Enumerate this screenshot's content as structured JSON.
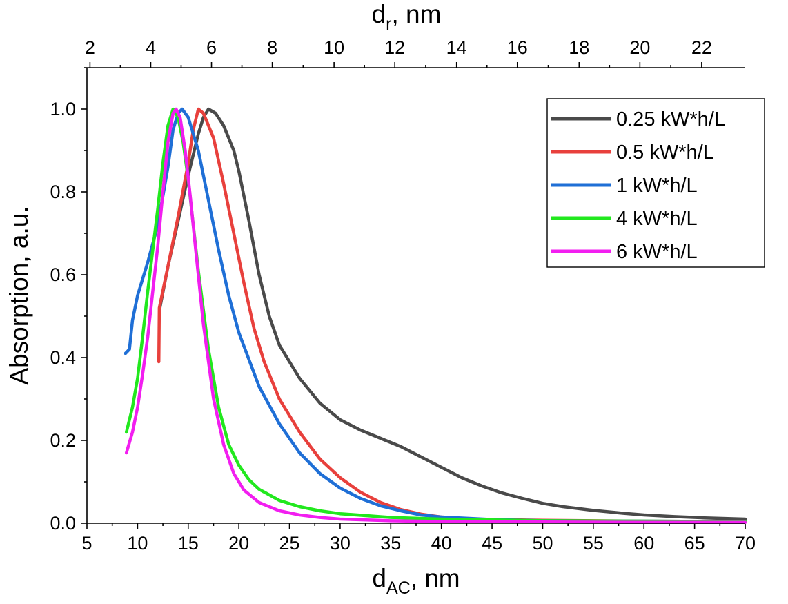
{
  "chart_data": {
    "type": "line",
    "xlabel": {
      "main": "d",
      "sub": "AC",
      "rest": ", nm"
    },
    "x2label": {
      "main": "d",
      "sub": "r",
      "rest": ", nm"
    },
    "ylabel": "Absorption, a.u.",
    "xlim": [
      5,
      70
    ],
    "ylim": [
      0,
      1.1
    ],
    "x_ticks": [
      "5",
      "10",
      "15",
      "20",
      "25",
      "30",
      "35",
      "40",
      "45",
      "50",
      "55",
      "60",
      "65",
      "70"
    ],
    "x_tick_values": [
      5,
      10,
      15,
      20,
      25,
      30,
      35,
      40,
      45,
      50,
      55,
      60,
      65,
      70
    ],
    "y_ticks": [
      "0.0",
      "0.2",
      "0.4",
      "0.6",
      "0.8",
      "1.0"
    ],
    "y_tick_values": [
      0,
      0.2,
      0.4,
      0.6,
      0.8,
      1.0
    ],
    "x2_ticks": [
      "2",
      "4",
      "6",
      "8",
      "10",
      "12",
      "14",
      "16",
      "18",
      "20",
      "22"
    ],
    "x2_tick_values_in_x_units": [
      5.3,
      11.3,
      17.3,
      23.3,
      29.4,
      35.4,
      41.5,
      47.5,
      53.6,
      59.6,
      65.7
    ],
    "legend_position": "top-right",
    "series": [
      {
        "name": "0.25 kW*h/L",
        "color": "#4a4a4a",
        "points": [
          [
            12.2,
            0.52
          ],
          [
            13,
            0.62
          ],
          [
            14,
            0.73
          ],
          [
            15,
            0.84
          ],
          [
            16,
            0.94
          ],
          [
            16.5,
            0.98
          ],
          [
            17,
            1.0
          ],
          [
            17.7,
            0.99
          ],
          [
            18.5,
            0.96
          ],
          [
            19.5,
            0.9
          ],
          [
            20,
            0.85
          ],
          [
            21,
            0.73
          ],
          [
            22,
            0.6
          ],
          [
            23,
            0.5
          ],
          [
            24,
            0.43
          ],
          [
            26,
            0.35
          ],
          [
            28,
            0.29
          ],
          [
            30,
            0.25
          ],
          [
            32,
            0.225
          ],
          [
            34,
            0.205
          ],
          [
            36,
            0.185
          ],
          [
            38,
            0.16
          ],
          [
            40,
            0.135
          ],
          [
            42,
            0.11
          ],
          [
            44,
            0.09
          ],
          [
            46,
            0.073
          ],
          [
            48,
            0.06
          ],
          [
            50,
            0.048
          ],
          [
            52,
            0.04
          ],
          [
            55,
            0.031
          ],
          [
            58,
            0.024
          ],
          [
            60,
            0.02
          ],
          [
            63,
            0.016
          ],
          [
            66,
            0.013
          ],
          [
            70,
            0.01
          ]
        ]
      },
      {
        "name": "0.5 kW*h/L",
        "color": "#e8403c",
        "points": [
          [
            12.1,
            0.39
          ],
          [
            12.15,
            0.52
          ],
          [
            13,
            0.62
          ],
          [
            14,
            0.74
          ],
          [
            15,
            0.87
          ],
          [
            15.5,
            0.95
          ],
          [
            16,
            1.0
          ],
          [
            16.5,
            0.99
          ],
          [
            17.5,
            0.93
          ],
          [
            18.5,
            0.82
          ],
          [
            19.5,
            0.7
          ],
          [
            20.5,
            0.58
          ],
          [
            21.5,
            0.47
          ],
          [
            22.5,
            0.39
          ],
          [
            24,
            0.3
          ],
          [
            26,
            0.22
          ],
          [
            28,
            0.155
          ],
          [
            30,
            0.11
          ],
          [
            32,
            0.075
          ],
          [
            34,
            0.05
          ],
          [
            36,
            0.033
          ],
          [
            38,
            0.022
          ],
          [
            40,
            0.015
          ],
          [
            43,
            0.01
          ],
          [
            50,
            0.007
          ],
          [
            60,
            0.005
          ],
          [
            70,
            0.004
          ]
        ]
      },
      {
        "name": "1 kW*h/L",
        "color": "#1f6fd6",
        "points": [
          [
            8.8,
            0.41
          ],
          [
            9.2,
            0.42
          ],
          [
            9.5,
            0.49
          ],
          [
            10,
            0.55
          ],
          [
            11,
            0.63
          ],
          [
            12,
            0.72
          ],
          [
            13,
            0.86
          ],
          [
            13.5,
            0.95
          ],
          [
            14,
            0.99
          ],
          [
            14.4,
            1.0
          ],
          [
            15,
            0.98
          ],
          [
            16,
            0.9
          ],
          [
            17,
            0.78
          ],
          [
            18,
            0.66
          ],
          [
            19,
            0.55
          ],
          [
            20,
            0.46
          ],
          [
            22,
            0.33
          ],
          [
            24,
            0.24
          ],
          [
            26,
            0.17
          ],
          [
            28,
            0.12
          ],
          [
            30,
            0.085
          ],
          [
            32,
            0.06
          ],
          [
            34,
            0.042
          ],
          [
            36,
            0.03
          ],
          [
            38,
            0.02
          ],
          [
            40,
            0.015
          ],
          [
            45,
            0.009
          ],
          [
            50,
            0.006
          ],
          [
            60,
            0.005
          ],
          [
            70,
            0.004
          ]
        ]
      },
      {
        "name": "4 kW*h/L",
        "color": "#22e81e",
        "points": [
          [
            8.9,
            0.22
          ],
          [
            9.5,
            0.28
          ],
          [
            10,
            0.35
          ],
          [
            10.5,
            0.45
          ],
          [
            11,
            0.56
          ],
          [
            11.5,
            0.66
          ],
          [
            12,
            0.76
          ],
          [
            12.5,
            0.87
          ],
          [
            13,
            0.96
          ],
          [
            13.5,
            1.0
          ],
          [
            14,
            0.98
          ],
          [
            14.5,
            0.92
          ],
          [
            15,
            0.83
          ],
          [
            15.5,
            0.72
          ],
          [
            16,
            0.61
          ],
          [
            17,
            0.42
          ],
          [
            18,
            0.28
          ],
          [
            19,
            0.19
          ],
          [
            20,
            0.14
          ],
          [
            21,
            0.105
          ],
          [
            22,
            0.082
          ],
          [
            24,
            0.055
          ],
          [
            26,
            0.04
          ],
          [
            28,
            0.03
          ],
          [
            30,
            0.023
          ],
          [
            35,
            0.014
          ],
          [
            40,
            0.01
          ],
          [
            45,
            0.008
          ],
          [
            50,
            0.006
          ],
          [
            60,
            0.005
          ],
          [
            70,
            0.004
          ]
        ]
      },
      {
        "name": "6 kW*h/L",
        "color": "#f21ef0",
        "points": [
          [
            8.9,
            0.17
          ],
          [
            9.5,
            0.22
          ],
          [
            10,
            0.28
          ],
          [
            10.5,
            0.36
          ],
          [
            11,
            0.45
          ],
          [
            11.5,
            0.56
          ],
          [
            12,
            0.67
          ],
          [
            12.5,
            0.8
          ],
          [
            13,
            0.92
          ],
          [
            13.5,
            0.99
          ],
          [
            13.8,
            1.0
          ],
          [
            14.2,
            0.98
          ],
          [
            14.7,
            0.9
          ],
          [
            15.2,
            0.79
          ],
          [
            15.7,
            0.67
          ],
          [
            16.5,
            0.48
          ],
          [
            17.5,
            0.3
          ],
          [
            18.5,
            0.19
          ],
          [
            19.5,
            0.12
          ],
          [
            20.5,
            0.08
          ],
          [
            22,
            0.05
          ],
          [
            24,
            0.03
          ],
          [
            26,
            0.02
          ],
          [
            28,
            0.014
          ],
          [
            30,
            0.01
          ],
          [
            35,
            0.006
          ],
          [
            40,
            0.004
          ],
          [
            50,
            0.003
          ],
          [
            60,
            0.002
          ],
          [
            70,
            0.002
          ]
        ]
      }
    ]
  }
}
